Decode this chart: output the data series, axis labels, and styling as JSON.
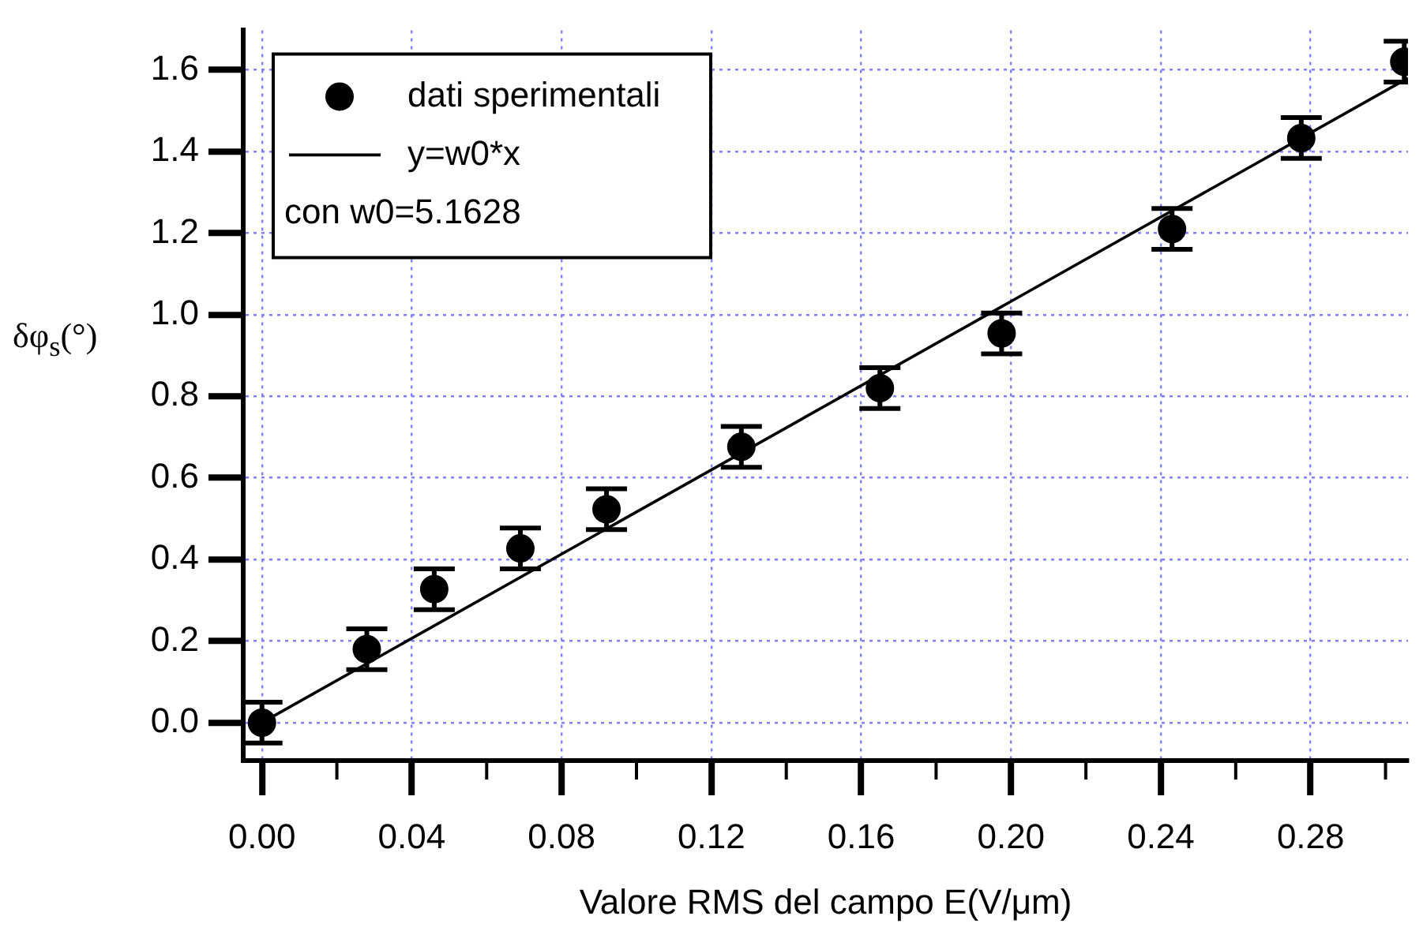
{
  "chart_data": {
    "type": "scatter",
    "xlabel": "Valore RMS del campo E(V/μm)",
    "ylabel": "δφ$_{s}$(°)",
    "xlim": [
      -0.005,
      0.306
    ],
    "ylim": [
      -0.093,
      1.697
    ],
    "xticks": [
      {
        "value": 0,
        "label": "0.00"
      },
      0.04,
      0.08,
      0.12,
      0.16,
      {
        "value": 0.2,
        "label": "0.20"
      },
      0.24,
      0.28
    ],
    "yticks": [
      {
        "value": 0,
        "label": "0.0"
      },
      0.2,
      0.4,
      0.6,
      0.8,
      {
        "value": 1,
        "label": "1.0"
      },
      1.2,
      1.4,
      1.6
    ],
    "grid": true,
    "legend": "top left",
    "marker": "circle",
    "annotations": [
      "con w0=5.1628"
    ],
    "series": [
      {
        "name": "dati sperimentali",
        "color": "#000000",
        "x": [
          0,
          0.028,
          0.046,
          0.069,
          0.092,
          0.128,
          0.165,
          0.1975,
          0.243,
          0.2775,
          0.305
        ],
        "values": [
          0,
          0.18,
          0.327,
          0.427,
          0.523,
          0.676,
          0.82,
          0.954,
          1.21,
          1.433,
          1.62
        ],
        "errors": [
          0.05,
          0.05,
          0.05,
          0.05,
          0.05,
          0.05,
          0.05,
          0.05,
          0.05,
          0.05,
          0.05
        ]
      },
      {
        "name": "y=w0*x",
        "type": "line",
        "color": "#000000",
        "line_style": "solid",
        "marker": "none",
        "x": [
          0,
          0.306
        ],
        "values": [
          0,
          1.58
        ]
      }
    ]
  }
}
